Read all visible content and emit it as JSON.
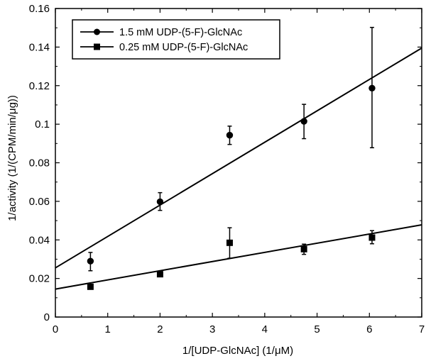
{
  "chart_data": {
    "type": "scatter",
    "title": "",
    "xlabel": "1/[UDP-GlcNAc] (1/μM)",
    "ylabel": "1/activity (1/(CPM/min/μg))",
    "xlim": [
      0,
      7
    ],
    "ylim": [
      0,
      0.16
    ],
    "xticks": [
      0,
      1,
      2,
      3,
      4,
      5,
      6,
      7
    ],
    "xtick_labels": [
      "0",
      "1",
      "2",
      "3",
      "4",
      "5",
      "6",
      "7"
    ],
    "yticks": [
      0,
      0.02,
      0.04,
      0.06,
      0.08,
      0.1,
      0.12,
      0.14,
      0.16
    ],
    "ytick_labels": [
      "0",
      "0.02",
      "0.04",
      "0.06",
      "0.08",
      "0.1",
      "0.12",
      "0.14",
      "0.16"
    ],
    "grid": false,
    "legend_position": "top-left",
    "series": [
      {
        "name": "1.5 mM UDP-(5-F)-GlcNAc",
        "marker": "circle",
        "color": "#000000",
        "points": [
          {
            "x": 0.67,
            "y": 0.029,
            "err_low": 0.024,
            "err_high": 0.0335
          },
          {
            "x": 2.0,
            "y": 0.0598,
            "err_low": 0.0553,
            "err_high": 0.0645
          },
          {
            "x": 3.33,
            "y": 0.0943,
            "err_low": 0.0895,
            "err_high": 0.099
          },
          {
            "x": 4.75,
            "y": 0.1015,
            "err_low": 0.0925,
            "err_high": 0.1103
          },
          {
            "x": 6.05,
            "y": 0.1187,
            "err_low": 0.0878,
            "err_high": 0.1502
          }
        ],
        "fit_line": {
          "x": [
            0,
            7
          ],
          "y": [
            0.0255,
            0.1395
          ]
        }
      },
      {
        "name": "0.25 mM UDP-(5-F)-GlcNAc",
        "marker": "square",
        "color": "#000000",
        "points": [
          {
            "x": 0.67,
            "y": 0.0157,
            "err_low": 0.0157,
            "err_high": 0.0157
          },
          {
            "x": 2.0,
            "y": 0.0222,
            "err_low": 0.0222,
            "err_high": 0.0222
          },
          {
            "x": 3.33,
            "y": 0.0385,
            "err_low": 0.0305,
            "err_high": 0.0463
          },
          {
            "x": 4.75,
            "y": 0.0352,
            "err_low": 0.0325,
            "err_high": 0.0378
          },
          {
            "x": 6.05,
            "y": 0.0412,
            "err_low": 0.038,
            "err_high": 0.0448
          }
        ],
        "fit_line": {
          "x": [
            0,
            7
          ],
          "y": [
            0.0145,
            0.0478
          ]
        }
      }
    ]
  }
}
